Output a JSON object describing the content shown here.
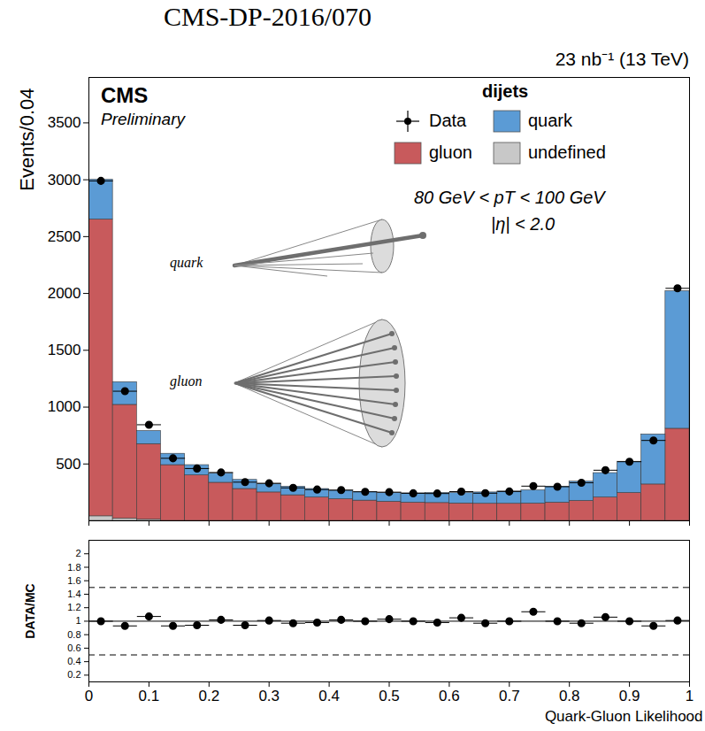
{
  "chart_data": [
    {
      "type": "bar",
      "stacked": true,
      "title": "CMS-DP-2016/070",
      "subtitle": "23 nb⁻¹ (13 TeV)",
      "ylabel": "Events/0.04",
      "bins": [
        0,
        0.04,
        0.08,
        0.12,
        0.16,
        0.2,
        0.24,
        0.28,
        0.32,
        0.36,
        0.4,
        0.44,
        0.48,
        0.52,
        0.56,
        0.6,
        0.64,
        0.68,
        0.72,
        0.76,
        0.8,
        0.84,
        0.88,
        0.92,
        0.96,
        1
      ],
      "series": [
        {
          "name": "Data",
          "type": "scatter",
          "marker": "circle",
          "color": "#000000",
          "values": [
            2990,
            1140,
            845,
            550,
            460,
            425,
            340,
            330,
            290,
            275,
            270,
            255,
            252,
            242,
            240,
            257,
            243,
            258,
            305,
            300,
            335,
            445,
            520,
            707,
            2045
          ]
        },
        {
          "name": "quark",
          "type": "bar",
          "color": "#5b9bd5",
          "values": [
            350,
            200,
            115,
            100,
            90,
            80,
            80,
            75,
            75,
            75,
            75,
            77,
            77,
            82,
            88,
            92,
            100,
            108,
            116,
            140,
            170,
            215,
            275,
            440,
            1210
          ]
        },
        {
          "name": "gluon",
          "type": "bar",
          "color": "#c85a5c",
          "values": [
            2610,
            1000,
            665,
            490,
            400,
            335,
            280,
            250,
            225,
            205,
            190,
            178,
            168,
            160,
            157,
            153,
            150,
            150,
            152,
            160,
            175,
            205,
            245,
            320,
            810
          ]
        },
        {
          "name": "undefined",
          "type": "bar",
          "color": "#c8c8c8",
          "values": [
            40,
            20,
            10,
            0,
            0,
            0,
            0,
            0,
            0,
            0,
            0,
            0,
            0,
            0,
            0,
            0,
            0,
            0,
            0,
            0,
            0,
            0,
            0,
            0,
            0
          ]
        }
      ],
      "xlim": [
        0,
        1
      ],
      "ylim": [
        0,
        3900
      ],
      "xticks": [
        0,
        0.1,
        0.2,
        0.3,
        0.4,
        0.5,
        0.6,
        0.7,
        0.8,
        0.9,
        1
      ],
      "yticks": [
        500,
        1000,
        1500,
        2000,
        2500,
        3000,
        3500
      ],
      "tick_labels": "y",
      "legend": "top-right",
      "legend_title": "dijets",
      "annotations": [
        "CMS",
        "Preliminary",
        "80 GeV < pT < 100 GeV",
        "|η| < 2.0",
        "quark",
        "gluon"
      ]
    },
    {
      "type": "scatter",
      "marker": "circle",
      "color": "#000000",
      "ylabel": "DATA/MC",
      "xlabel": "Quark-Gluon Likelihood",
      "bins": [
        0,
        0.04,
        0.08,
        0.12,
        0.16,
        0.2,
        0.24,
        0.28,
        0.32,
        0.36,
        0.4,
        0.44,
        0.48,
        0.52,
        0.56,
        0.6,
        0.64,
        0.68,
        0.72,
        0.76,
        0.8,
        0.84,
        0.88,
        0.92,
        0.96,
        1
      ],
      "values": [
        1.0,
        0.93,
        1.07,
        0.93,
        0.94,
        1.02,
        0.94,
        1.01,
        0.97,
        0.98,
        1.02,
        1.0,
        1.03,
        1.0,
        0.98,
        1.05,
        0.97,
        1.0,
        1.14,
        1.0,
        0.97,
        1.06,
        1.0,
        0.93,
        1.01
      ],
      "xlim": [
        0,
        1
      ],
      "ylim": [
        0.1,
        2.2
      ],
      "xticks": [
        0,
        0.1,
        0.2,
        0.3,
        0.4,
        0.5,
        0.6,
        0.7,
        0.8,
        0.9,
        1
      ],
      "yticks": [
        0.2,
        0.4,
        0.6,
        0.8,
        1,
        1.2,
        1.4,
        1.6,
        1.8,
        2
      ],
      "reference_lines": [
        {
          "value": 0.5,
          "line_style": "dashed"
        },
        {
          "value": 1,
          "line_style": "solid"
        },
        {
          "value": 1.5,
          "line_style": "dashed"
        }
      ]
    }
  ]
}
